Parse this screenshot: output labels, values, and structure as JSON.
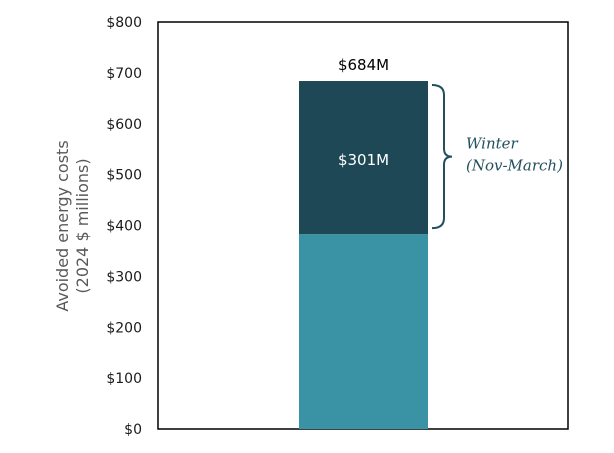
{
  "chart_data": {
    "type": "bar",
    "stacked": true,
    "categories": [
      ""
    ],
    "series": [
      {
        "values": [
          383
        ],
        "color": "#3a92a5"
      },
      {
        "values": [
          301
        ],
        "color": "#1f4856",
        "data_label": "$301M"
      }
    ],
    "total_label": "$684M",
    "ylabel_line1": "Avoided energy costs",
    "ylabel_line2": "(2024 $ millions)",
    "ylim": [
      0,
      800
    ],
    "yticks": [
      0,
      100,
      200,
      300,
      400,
      500,
      600,
      700,
      800
    ],
    "ytick_labels": [
      "$0",
      "$100",
      "$200",
      "$300",
      "$400",
      "$500",
      "$600",
      "$700",
      "$800"
    ],
    "annotation_line1": "Winter",
    "annotation_line2": "(Nov-March)",
    "grid": false
  }
}
